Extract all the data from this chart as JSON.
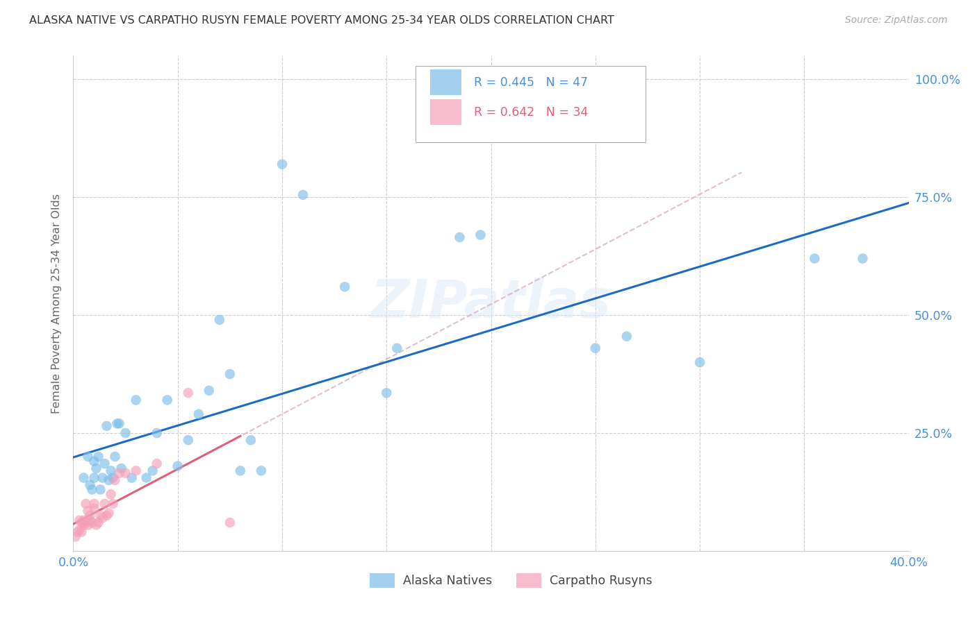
{
  "title": "ALASKA NATIVE VS CARPATHO RUSYN FEMALE POVERTY AMONG 25-34 YEAR OLDS CORRELATION CHART",
  "source": "Source: ZipAtlas.com",
  "ylabel": "Female Poverty Among 25-34 Year Olds",
  "xlim": [
    0.0,
    0.4
  ],
  "ylim": [
    0.0,
    1.05
  ],
  "legend_labels": [
    "Alaska Natives",
    "Carpatho Rusyns"
  ],
  "r_alaska": 0.445,
  "n_alaska": 47,
  "r_carpatho": 0.642,
  "n_carpatho": 34,
  "alaska_color": "#7dbde8",
  "carpatho_color": "#f4a0b8",
  "alaska_line_color": "#1a6bc4",
  "carpatho_line_color": "#e0607a",
  "carpatho_dashed_color": "#ddb8c4",
  "watermark_text": "ZIPatlas",
  "alaska_x": [
    0.005,
    0.007,
    0.008,
    0.009,
    0.01,
    0.01,
    0.011,
    0.012,
    0.013,
    0.014,
    0.015,
    0.016,
    0.017,
    0.018,
    0.019,
    0.02,
    0.021,
    0.022,
    0.023,
    0.025,
    0.028,
    0.03,
    0.035,
    0.038,
    0.04,
    0.045,
    0.05,
    0.055,
    0.06,
    0.065,
    0.07,
    0.075,
    0.08,
    0.085,
    0.09,
    0.1,
    0.11,
    0.13,
    0.15,
    0.155,
    0.185,
    0.195,
    0.25,
    0.265,
    0.3,
    0.355,
    0.378
  ],
  "alaska_y": [
    0.155,
    0.2,
    0.14,
    0.13,
    0.19,
    0.155,
    0.175,
    0.2,
    0.13,
    0.155,
    0.185,
    0.265,
    0.15,
    0.17,
    0.155,
    0.2,
    0.27,
    0.27,
    0.175,
    0.25,
    0.155,
    0.32,
    0.155,
    0.17,
    0.25,
    0.32,
    0.18,
    0.235,
    0.29,
    0.34,
    0.49,
    0.375,
    0.17,
    0.235,
    0.17,
    0.82,
    0.755,
    0.56,
    0.335,
    0.43,
    0.665,
    0.67,
    0.43,
    0.455,
    0.4,
    0.62,
    0.62
  ],
  "carpatho_x": [
    0.001,
    0.002,
    0.003,
    0.003,
    0.004,
    0.004,
    0.005,
    0.005,
    0.006,
    0.006,
    0.007,
    0.007,
    0.007,
    0.008,
    0.008,
    0.009,
    0.01,
    0.01,
    0.011,
    0.012,
    0.013,
    0.014,
    0.015,
    0.016,
    0.017,
    0.018,
    0.019,
    0.02,
    0.022,
    0.025,
    0.03,
    0.04,
    0.055,
    0.075
  ],
  "carpatho_y": [
    0.03,
    0.04,
    0.045,
    0.065,
    0.04,
    0.06,
    0.055,
    0.065,
    0.06,
    0.1,
    0.055,
    0.065,
    0.085,
    0.065,
    0.075,
    0.06,
    0.09,
    0.1,
    0.055,
    0.06,
    0.075,
    0.07,
    0.1,
    0.075,
    0.08,
    0.12,
    0.1,
    0.15,
    0.165,
    0.165,
    0.17,
    0.185,
    0.335,
    0.06
  ]
}
